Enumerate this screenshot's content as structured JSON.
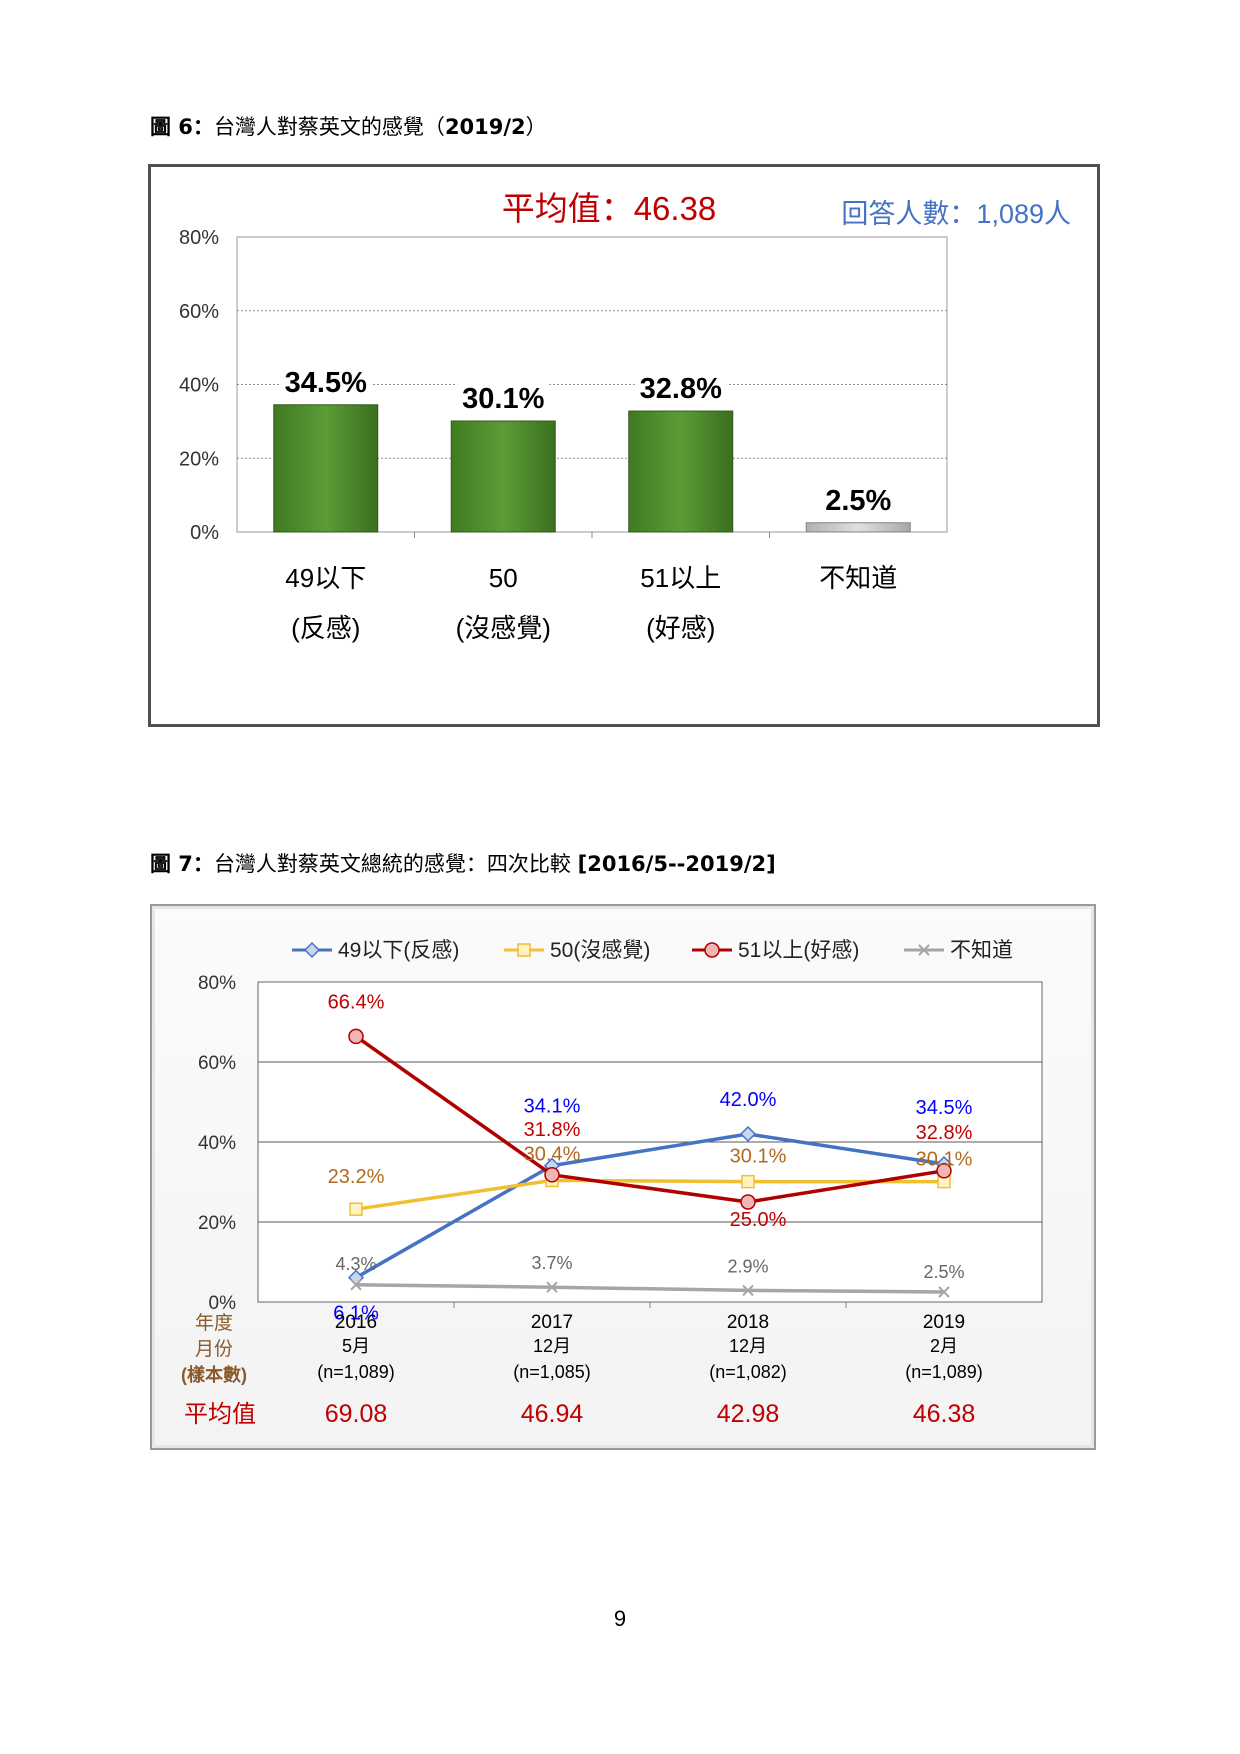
{
  "figure6": {
    "caption_prefix": "圖 6：",
    "caption_text": "台灣人對蔡英文的感覺（",
    "caption_year": "2019/2",
    "caption_end": "）",
    "mean_label": "平均值：46.38",
    "respondents_label": "回答人數：1,089人",
    "colors": {
      "bar": "#4e8a2e",
      "unknown_bar": "#c8c8c8",
      "mean_text": "#c00000",
      "respondents_text": "#4472c4"
    }
  },
  "figure7": {
    "caption_prefix": "圖 7：",
    "caption_text": "台灣人對蔡英文總統的感覺：四次比較 ",
    "caption_range": "[2016/5--2019/2]",
    "row_labels": {
      "year": "年度",
      "month": "月份",
      "sample": "(樣本數)",
      "mean": "平均值"
    },
    "columns": [
      {
        "year": "2016",
        "month": "5月",
        "sample": "(n=1,089)",
        "mean": "69.08"
      },
      {
        "year": "2017",
        "month": "12月",
        "sample": "(n=1,085)",
        "mean": "46.94"
      },
      {
        "year": "2018",
        "month": "12月",
        "sample": "(n=1,082)",
        "mean": "42.98"
      },
      {
        "year": "2019",
        "month": "2月",
        "sample": "(n=1,089)",
        "mean": "46.38"
      }
    ]
  },
  "page_number": "9",
  "chart_data": [
    {
      "type": "bar",
      "title": "平均值：46.38",
      "subtitle": "回答人數：1,089人",
      "categories": [
        [
          "49以下",
          "(反感)"
        ],
        [
          "50",
          "(沒感覺)"
        ],
        [
          "51以上",
          "(好感)"
        ],
        [
          "不知道",
          ""
        ]
      ],
      "values": [
        34.5,
        30.1,
        32.8,
        2.5
      ],
      "data_labels": [
        "34.5%",
        "30.1%",
        "32.8%",
        "2.5%"
      ],
      "ylim": [
        0,
        80
      ],
      "yticks": [
        "0%",
        "20%",
        "40%",
        "60%",
        "80%"
      ],
      "grid": true
    },
    {
      "type": "line",
      "x": [
        "2016/5",
        "2017/12",
        "2018/12",
        "2019/2"
      ],
      "ylim": [
        0,
        80
      ],
      "yticks": [
        "0%",
        "20%",
        "40%",
        "60%",
        "80%"
      ],
      "legend_position": "top",
      "grid": true,
      "series": [
        {
          "name": "49以下(反感)",
          "values": [
            6.1,
            34.1,
            42.0,
            34.5
          ],
          "labels": [
            "6.1%",
            "34.1%",
            "42.0%",
            "34.5%"
          ],
          "color": "#4472c4",
          "label_color": "#0000ff",
          "marker": "diamond"
        },
        {
          "name": "50(沒感覺)",
          "values": [
            23.2,
            30.4,
            30.1,
            30.1
          ],
          "labels": [
            "23.2%",
            "30.4%",
            "30.1%",
            "30.1%"
          ],
          "color": "#f0c030",
          "label_color": "#b06a20",
          "marker": "square"
        },
        {
          "name": "51以上(好感)",
          "values": [
            66.4,
            31.8,
            25.0,
            32.8
          ],
          "labels": [
            "66.4%",
            "31.8%",
            "25.0%",
            "32.8%"
          ],
          "color": "#b00000",
          "label_color": "#c00000",
          "marker": "circle"
        },
        {
          "name": "不知道",
          "values": [
            4.3,
            3.7,
            2.9,
            2.5
          ],
          "labels": [
            "4.3%",
            "3.7%",
            "2.9%",
            "2.5%"
          ],
          "color": "#a6a6a6",
          "label_color": "#666666",
          "marker": "x"
        }
      ]
    }
  ]
}
